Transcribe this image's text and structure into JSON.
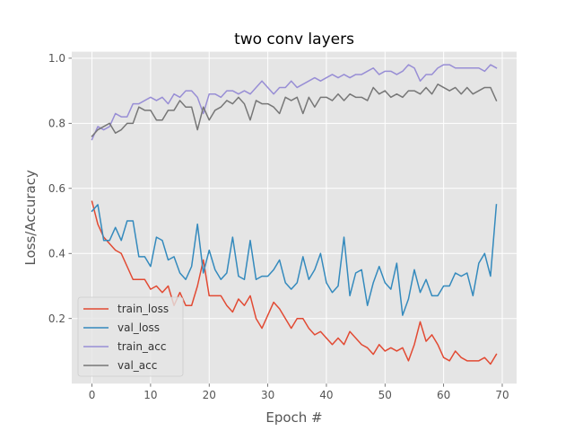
{
  "chart_data": {
    "type": "line",
    "title": "two conv layers",
    "xlabel": "Epoch #",
    "ylabel": "Loss/Accuracy",
    "xlim": [
      -3.45,
      72.45
    ],
    "ylim": [
      0.0,
      1.02
    ],
    "xticks": [
      0,
      10,
      20,
      30,
      40,
      50,
      60,
      70
    ],
    "yticks": [
      0.2,
      0.4,
      0.6,
      0.8,
      1.0
    ],
    "ytick_labels": [
      "0.2",
      "0.4",
      "0.6",
      "0.8",
      "1.0"
    ],
    "grid": true,
    "legend_position": "lower-left",
    "x": [
      0,
      1,
      2,
      3,
      4,
      5,
      6,
      7,
      8,
      9,
      10,
      11,
      12,
      13,
      14,
      15,
      16,
      17,
      18,
      19,
      20,
      21,
      22,
      23,
      24,
      25,
      26,
      27,
      28,
      29,
      30,
      31,
      32,
      33,
      34,
      35,
      36,
      37,
      38,
      39,
      40,
      41,
      42,
      43,
      44,
      45,
      46,
      47,
      48,
      49,
      50,
      51,
      52,
      53,
      54,
      55,
      56,
      57,
      58,
      59,
      60,
      61,
      62,
      63,
      64,
      65,
      66,
      67,
      68,
      69
    ],
    "series": [
      {
        "name": "train_loss",
        "color": "#E24A33",
        "values": [
          0.56,
          0.49,
          0.45,
          0.43,
          0.41,
          0.4,
          0.36,
          0.32,
          0.32,
          0.32,
          0.29,
          0.3,
          0.28,
          0.3,
          0.24,
          0.28,
          0.24,
          0.24,
          0.3,
          0.38,
          0.27,
          0.27,
          0.27,
          0.24,
          0.22,
          0.26,
          0.24,
          0.27,
          0.2,
          0.17,
          0.21,
          0.25,
          0.23,
          0.2,
          0.17,
          0.2,
          0.2,
          0.17,
          0.15,
          0.16,
          0.14,
          0.12,
          0.14,
          0.12,
          0.16,
          0.14,
          0.12,
          0.11,
          0.09,
          0.12,
          0.1,
          0.11,
          0.1,
          0.11,
          0.07,
          0.12,
          0.19,
          0.13,
          0.15,
          0.12,
          0.08,
          0.07,
          0.1,
          0.08,
          0.07,
          0.07,
          0.07,
          0.08,
          0.06,
          0.09
        ]
      },
      {
        "name": "val_loss",
        "color": "#348ABD",
        "values": [
          0.53,
          0.55,
          0.44,
          0.44,
          0.48,
          0.44,
          0.5,
          0.5,
          0.39,
          0.39,
          0.36,
          0.45,
          0.44,
          0.38,
          0.39,
          0.34,
          0.32,
          0.36,
          0.49,
          0.34,
          0.41,
          0.35,
          0.32,
          0.34,
          0.45,
          0.33,
          0.32,
          0.44,
          0.32,
          0.33,
          0.33,
          0.35,
          0.38,
          0.31,
          0.29,
          0.31,
          0.39,
          0.32,
          0.35,
          0.4,
          0.31,
          0.28,
          0.3,
          0.45,
          0.27,
          0.34,
          0.35,
          0.24,
          0.31,
          0.36,
          0.31,
          0.29,
          0.37,
          0.21,
          0.26,
          0.35,
          0.28,
          0.32,
          0.27,
          0.27,
          0.3,
          0.3,
          0.34,
          0.33,
          0.34,
          0.27,
          0.37,
          0.4,
          0.33,
          0.55
        ]
      },
      {
        "name": "train_acc",
        "color": "#988ED5",
        "values": [
          0.75,
          0.79,
          0.78,
          0.79,
          0.83,
          0.82,
          0.82,
          0.86,
          0.86,
          0.87,
          0.88,
          0.87,
          0.88,
          0.86,
          0.89,
          0.88,
          0.9,
          0.9,
          0.88,
          0.83,
          0.89,
          0.89,
          0.88,
          0.9,
          0.9,
          0.89,
          0.9,
          0.89,
          0.91,
          0.93,
          0.91,
          0.89,
          0.91,
          0.91,
          0.93,
          0.91,
          0.92,
          0.93,
          0.94,
          0.93,
          0.94,
          0.95,
          0.94,
          0.95,
          0.94,
          0.95,
          0.95,
          0.96,
          0.97,
          0.95,
          0.96,
          0.96,
          0.95,
          0.96,
          0.98,
          0.97,
          0.93,
          0.95,
          0.95,
          0.97,
          0.98,
          0.98,
          0.97,
          0.97,
          0.97,
          0.97,
          0.97,
          0.96,
          0.98,
          0.97
        ]
      },
      {
        "name": "val_acc",
        "color": "#777777",
        "values": [
          0.76,
          0.78,
          0.79,
          0.8,
          0.77,
          0.78,
          0.8,
          0.8,
          0.85,
          0.84,
          0.84,
          0.81,
          0.81,
          0.84,
          0.84,
          0.87,
          0.85,
          0.85,
          0.78,
          0.85,
          0.81,
          0.84,
          0.85,
          0.87,
          0.86,
          0.88,
          0.86,
          0.81,
          0.87,
          0.86,
          0.86,
          0.85,
          0.83,
          0.88,
          0.87,
          0.88,
          0.83,
          0.88,
          0.85,
          0.88,
          0.88,
          0.87,
          0.89,
          0.87,
          0.89,
          0.88,
          0.88,
          0.87,
          0.91,
          0.89,
          0.9,
          0.88,
          0.89,
          0.88,
          0.9,
          0.9,
          0.89,
          0.91,
          0.89,
          0.92,
          0.91,
          0.9,
          0.91,
          0.89,
          0.91,
          0.89,
          0.9,
          0.91,
          0.91,
          0.87
        ]
      }
    ]
  }
}
